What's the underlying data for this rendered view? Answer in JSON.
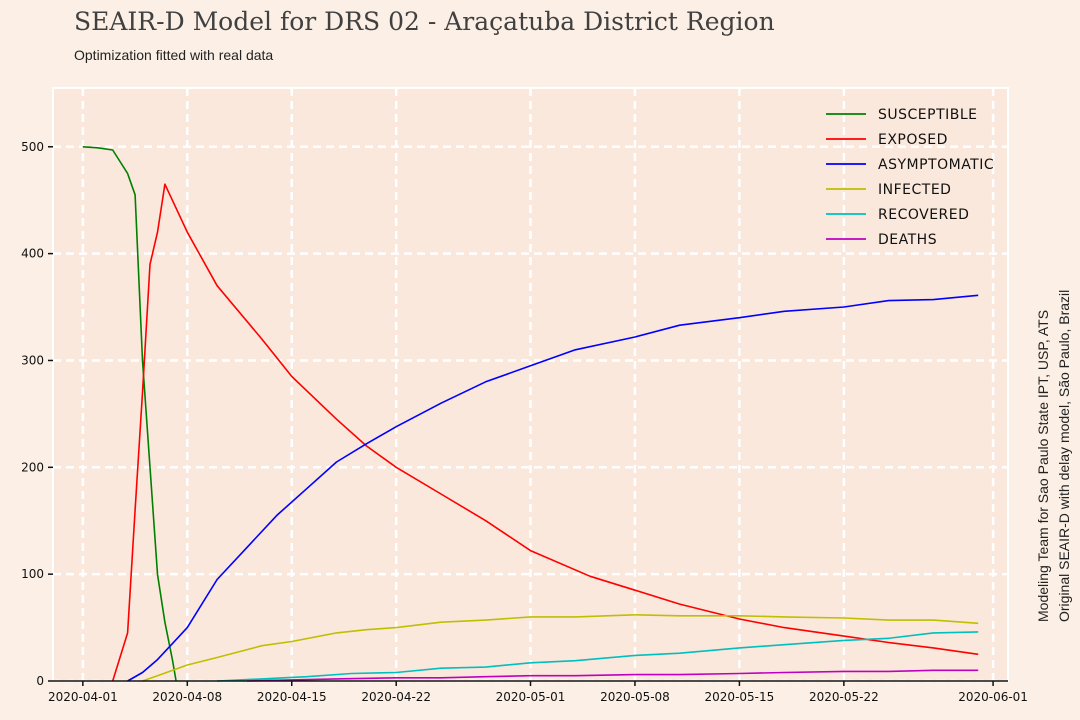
{
  "chart_data": {
    "type": "line",
    "title": "SEAIR-D Model for DRS 02 - Araçatuba District Region",
    "subtitle": "Optimization fitted with real data",
    "side_notes": [
      "Modeling Team for Sao Paulo State IPT, USP, ATS",
      "Original SEAIR-D with delay model, São Paulo, Brazil"
    ],
    "xlabel": "",
    "ylabel": "",
    "x_axis": {
      "type": "date",
      "range": [
        "2020-03-30",
        "2020-06-02"
      ],
      "ticks": [
        "2020-04-01",
        "2020-04-08",
        "2020-04-15",
        "2020-04-22",
        "2020-05-01",
        "2020-05-08",
        "2020-05-15",
        "2020-05-22",
        "2020-06-01"
      ]
    },
    "y_axis": {
      "range": [
        0,
        555
      ],
      "ticks": [
        0,
        100,
        200,
        300,
        400,
        500
      ]
    },
    "grid": true,
    "legend_placement": "top-right",
    "series": [
      {
        "name": "Susceptible",
        "color": "#008000",
        "points": [
          [
            "2020-04-01",
            500
          ],
          [
            "2020-04-02",
            499
          ],
          [
            "2020-04-03",
            497
          ],
          [
            "2020-04-04",
            475
          ],
          [
            "2020-04-04T12:00",
            455
          ],
          [
            "2020-04-05",
            300
          ],
          [
            "2020-04-05T12:00",
            200
          ],
          [
            "2020-04-06",
            100
          ],
          [
            "2020-04-06T12:00",
            55
          ],
          [
            "2020-04-07",
            20
          ],
          [
            "2020-04-07T06:00",
            0
          ]
        ]
      },
      {
        "name": "Exposed",
        "color": "#ff0000",
        "points": [
          [
            "2020-04-03",
            0
          ],
          [
            "2020-04-04",
            45
          ],
          [
            "2020-04-04T12:00",
            160
          ],
          [
            "2020-04-05",
            270
          ],
          [
            "2020-04-05T12:00",
            390
          ],
          [
            "2020-04-06",
            420
          ],
          [
            "2020-04-06T12:00",
            465
          ],
          [
            "2020-04-08",
            420
          ],
          [
            "2020-04-10",
            370
          ],
          [
            "2020-04-13",
            320
          ],
          [
            "2020-04-15",
            285
          ],
          [
            "2020-04-18",
            245
          ],
          [
            "2020-04-20",
            220
          ],
          [
            "2020-04-22",
            200
          ],
          [
            "2020-04-25",
            175
          ],
          [
            "2020-04-28",
            150
          ],
          [
            "2020-05-01",
            122
          ],
          [
            "2020-05-05",
            98
          ],
          [
            "2020-05-08",
            85
          ],
          [
            "2020-05-11",
            72
          ],
          [
            "2020-05-15",
            58
          ],
          [
            "2020-05-18",
            50
          ],
          [
            "2020-05-22",
            42
          ],
          [
            "2020-05-25",
            36
          ],
          [
            "2020-05-28",
            31
          ],
          [
            "2020-05-31",
            25
          ]
        ]
      },
      {
        "name": "Asymptomatic",
        "color": "#0000ff",
        "points": [
          [
            "2020-04-04",
            0
          ],
          [
            "2020-04-05",
            8
          ],
          [
            "2020-04-06",
            20
          ],
          [
            "2020-04-08",
            50
          ],
          [
            "2020-04-10",
            95
          ],
          [
            "2020-04-12",
            125
          ],
          [
            "2020-04-14",
            155
          ],
          [
            "2020-04-16",
            180
          ],
          [
            "2020-04-18",
            205
          ],
          [
            "2020-04-20",
            222
          ],
          [
            "2020-04-22",
            238
          ],
          [
            "2020-04-25",
            260
          ],
          [
            "2020-04-28",
            280
          ],
          [
            "2020-05-01",
            295
          ],
          [
            "2020-05-04",
            310
          ],
          [
            "2020-05-08",
            322
          ],
          [
            "2020-05-11",
            333
          ],
          [
            "2020-05-15",
            340
          ],
          [
            "2020-05-18",
            346
          ],
          [
            "2020-05-22",
            350
          ],
          [
            "2020-05-25",
            356
          ],
          [
            "2020-05-28",
            357
          ],
          [
            "2020-05-31",
            361
          ]
        ]
      },
      {
        "name": "Infected",
        "color": "#bfbf00",
        "points": [
          [
            "2020-04-05",
            0
          ],
          [
            "2020-04-06",
            5
          ],
          [
            "2020-04-08",
            15
          ],
          [
            "2020-04-10",
            22
          ],
          [
            "2020-04-13",
            33
          ],
          [
            "2020-04-15",
            37
          ],
          [
            "2020-04-18",
            45
          ],
          [
            "2020-04-20",
            48
          ],
          [
            "2020-04-22",
            50
          ],
          [
            "2020-04-25",
            55
          ],
          [
            "2020-04-28",
            57
          ],
          [
            "2020-05-01",
            60
          ],
          [
            "2020-05-04",
            60
          ],
          [
            "2020-05-08",
            62
          ],
          [
            "2020-05-11",
            61
          ],
          [
            "2020-05-15",
            61
          ],
          [
            "2020-05-18",
            60
          ],
          [
            "2020-05-22",
            59
          ],
          [
            "2020-05-25",
            57
          ],
          [
            "2020-05-28",
            57
          ],
          [
            "2020-05-31",
            54
          ]
        ]
      },
      {
        "name": "Recovered",
        "color": "#00bfbf",
        "points": [
          [
            "2020-04-10",
            0
          ],
          [
            "2020-04-13",
            2
          ],
          [
            "2020-04-16",
            4
          ],
          [
            "2020-04-19",
            7
          ],
          [
            "2020-04-22",
            8
          ],
          [
            "2020-04-25",
            12
          ],
          [
            "2020-04-28",
            13
          ],
          [
            "2020-05-01",
            17
          ],
          [
            "2020-05-04",
            19
          ],
          [
            "2020-05-08",
            24
          ],
          [
            "2020-05-11",
            26
          ],
          [
            "2020-05-15",
            31
          ],
          [
            "2020-05-18",
            34
          ],
          [
            "2020-05-22",
            38
          ],
          [
            "2020-05-25",
            40
          ],
          [
            "2020-05-28",
            45
          ],
          [
            "2020-05-31",
            46
          ]
        ]
      },
      {
        "name": "Deaths",
        "color": "#bf00bf",
        "points": [
          [
            "2020-04-12",
            0
          ],
          [
            "2020-04-15",
            1
          ],
          [
            "2020-04-18",
            2
          ],
          [
            "2020-04-22",
            3
          ],
          [
            "2020-04-25",
            3
          ],
          [
            "2020-04-28",
            4
          ],
          [
            "2020-05-01",
            5
          ],
          [
            "2020-05-04",
            5
          ],
          [
            "2020-05-08",
            6
          ],
          [
            "2020-05-11",
            6
          ],
          [
            "2020-05-15",
            7
          ],
          [
            "2020-05-18",
            8
          ],
          [
            "2020-05-22",
            9
          ],
          [
            "2020-05-25",
            9
          ],
          [
            "2020-05-28",
            10
          ],
          [
            "2020-05-31",
            10
          ]
        ]
      }
    ]
  }
}
